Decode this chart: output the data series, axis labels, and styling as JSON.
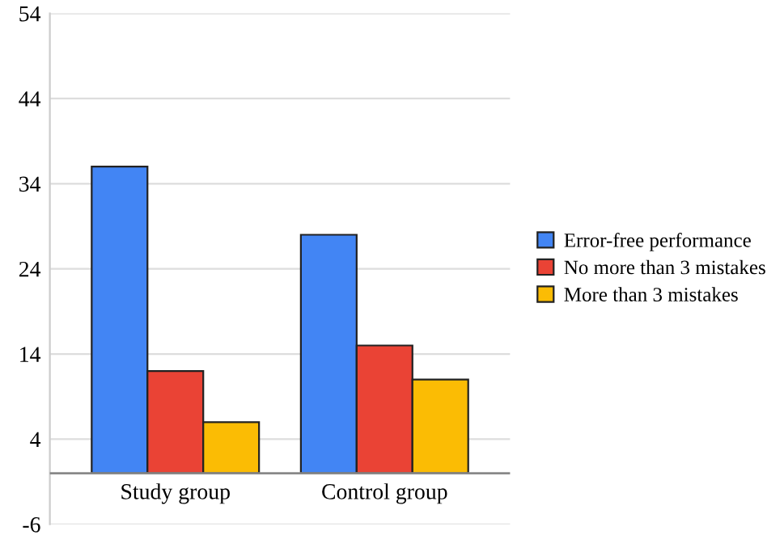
{
  "chart_data": {
    "type": "bar",
    "categories": [
      "Study group",
      "Control group"
    ],
    "series": [
      {
        "name": "Error-free performance",
        "color": "#4285f4",
        "values": [
          36,
          28
        ]
      },
      {
        "name": "No more than 3 mistakes",
        "color": "#ea4335",
        "values": [
          12,
          15
        ]
      },
      {
        "name": "More than 3 mistakes",
        "color": "#fbbc04",
        "values": [
          6,
          11
        ]
      }
    ],
    "ylim": [
      -6,
      54
    ],
    "yticks": [
      -6,
      4,
      14,
      24,
      34,
      44,
      54
    ],
    "grid": "y",
    "legend": "right"
  }
}
